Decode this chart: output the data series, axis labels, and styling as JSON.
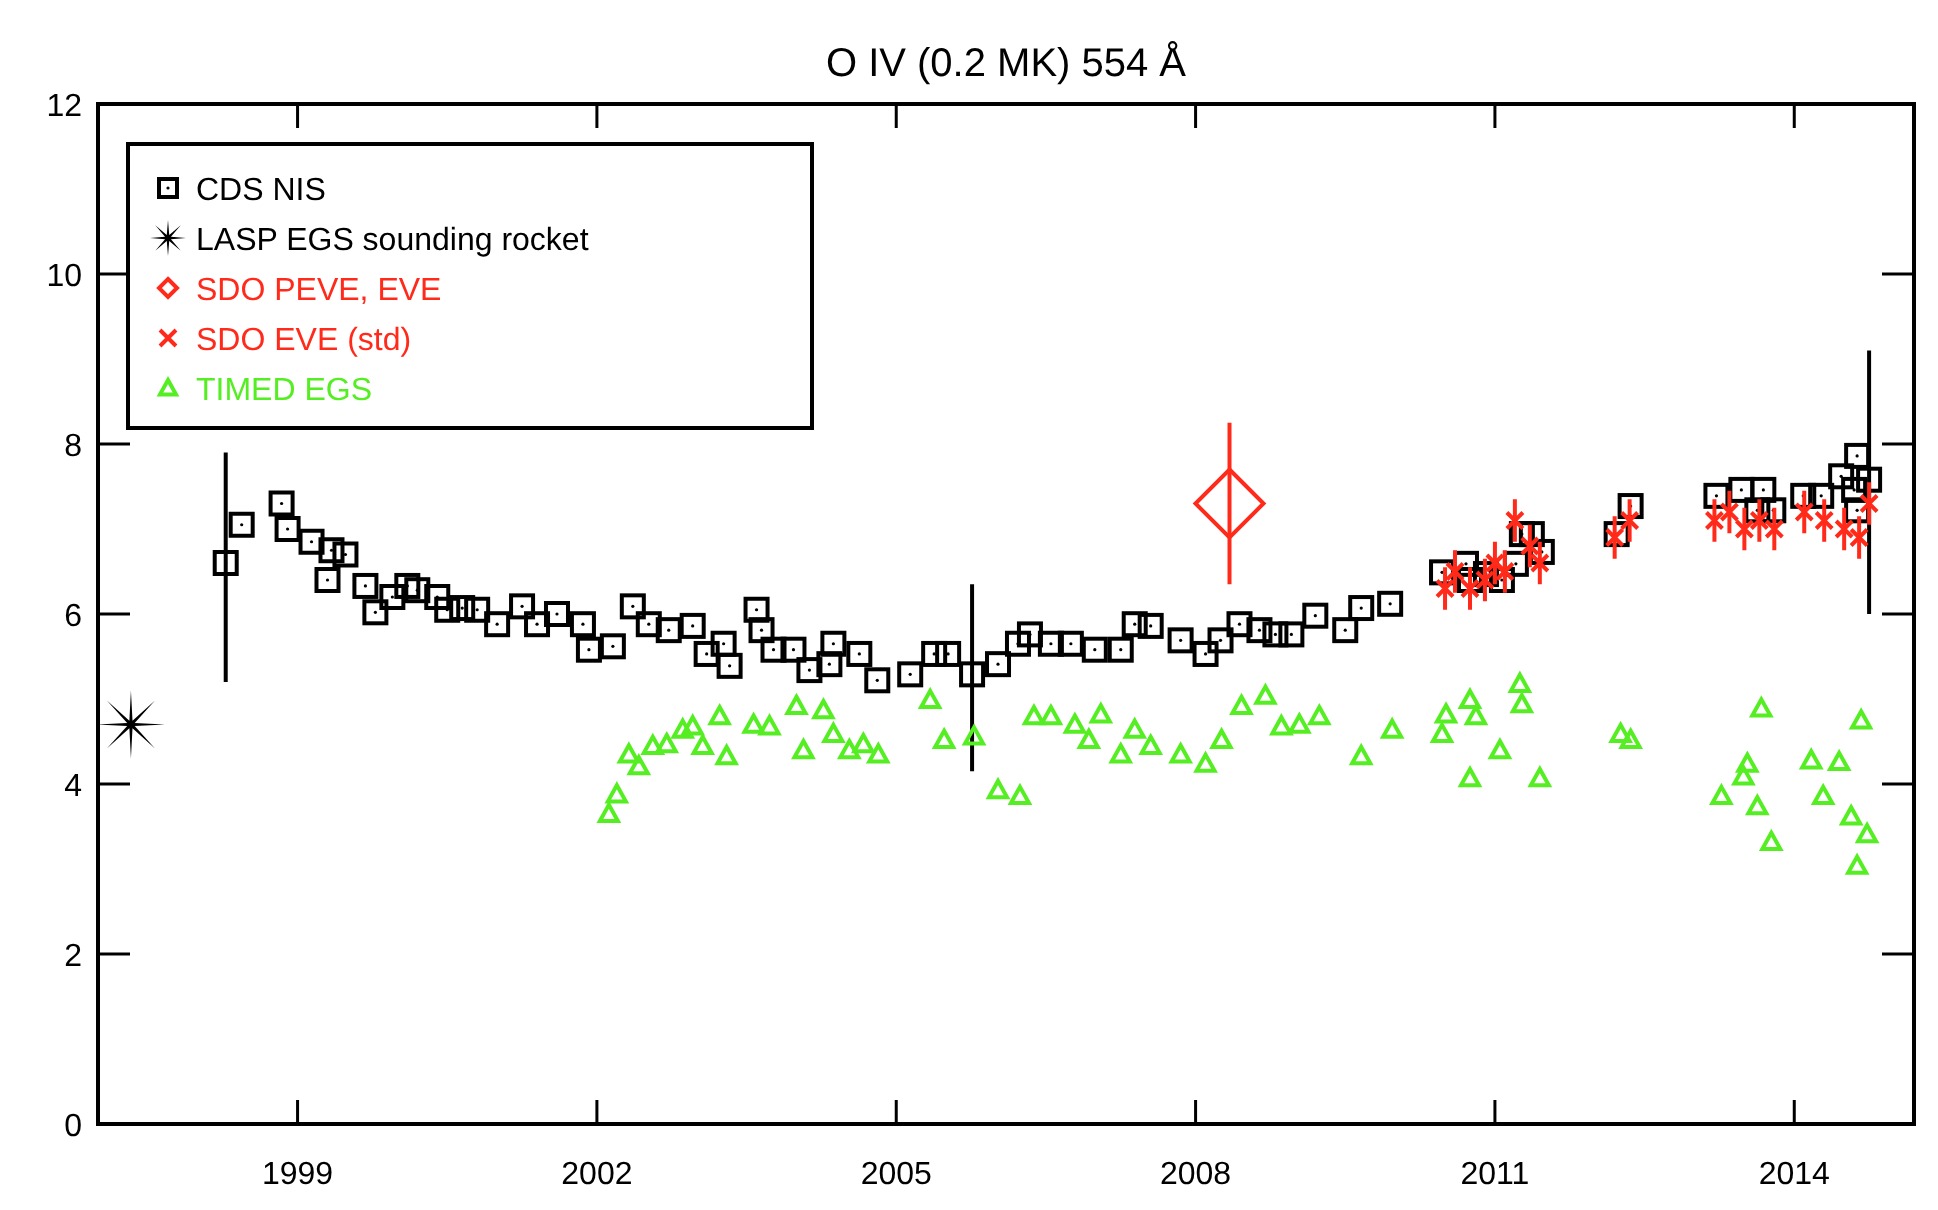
{
  "chart_data": {
    "type": "scatter",
    "title": "O IV (0.2 MK) 554 Å",
    "xlim": [
      1997,
      2015.2
    ],
    "ylim": [
      0,
      12
    ],
    "xticks": [
      1999,
      2002,
      2005,
      2008,
      2011,
      2014
    ],
    "yticks": [
      0,
      2,
      4,
      6,
      8,
      10,
      12
    ],
    "grid": false,
    "legend": "top left",
    "series": [
      {
        "name": "CDS NIS",
        "color": "#000000",
        "marker": "square",
        "x": [
          1998.28,
          1998.44,
          1998.84,
          1998.9,
          1999.14,
          1999.34,
          1999.48,
          1999.3,
          1999.68,
          1999.78,
          1999.95,
          2000.1,
          2000.2,
          2000.4,
          2000.5,
          2000.65,
          2000.8,
          2001.0,
          2001.25,
          2001.4,
          2001.6,
          2001.86,
          2001.92,
          2002.16,
          2002.36,
          2002.52,
          2002.72,
          2002.96,
          2003.1,
          2003.27,
          2003.33,
          2003.6,
          2003.65,
          2003.77,
          2003.97,
          2004.13,
          2004.37,
          2004.33,
          2004.63,
          2004.81,
          2005.14,
          2005.38,
          2005.52,
          2005.76,
          2006.02,
          2006.22,
          2006.34,
          2006.55,
          2006.75,
          2006.99,
          2007.25,
          2007.39,
          2007.55,
          2007.85,
          2008.1,
          2008.25,
          2008.44,
          2008.64,
          2008.8,
          2008.96,
          2009.2,
          2009.5,
          2009.66,
          2009.95,
          2010.47,
          2010.71,
          2010.75,
          2010.91,
          2011.07,
          2011.21,
          2011.27,
          2011.37,
          2011.47,
          2012.22,
          2012.36,
          2013.22,
          2013.47,
          2013.69,
          2013.63,
          2013.79,
          2014.09,
          2014.27,
          2014.47,
          2014.6,
          2014.63,
          2014.63,
          2014.75
        ],
        "values": [
          6.6,
          7.05,
          7.3,
          7.0,
          6.85,
          6.75,
          6.7,
          6.4,
          6.33,
          6.02,
          6.2,
          6.33,
          6.28,
          6.2,
          6.05,
          6.07,
          6.05,
          5.88,
          6.09,
          5.88,
          6.0,
          5.88,
          5.58,
          5.62,
          6.09,
          5.88,
          5.81,
          5.86,
          5.53,
          5.65,
          5.39,
          6.05,
          5.81,
          5.58,
          5.58,
          5.34,
          5.65,
          5.41,
          5.53,
          5.22,
          5.29,
          5.53,
          5.53,
          5.29,
          5.41,
          5.65,
          5.76,
          5.65,
          5.65,
          5.58,
          5.58,
          5.88,
          5.86,
          5.69,
          5.53,
          5.69,
          5.88,
          5.81,
          5.76,
          5.76,
          5.98,
          5.81,
          6.07,
          6.12,
          6.49,
          6.59,
          6.4,
          6.47,
          6.4,
          6.59,
          6.94,
          6.94,
          6.73,
          6.94,
          7.27,
          7.39,
          7.46,
          7.46,
          7.22,
          7.22,
          7.39,
          7.39,
          7.62,
          7.46,
          7.86,
          7.22,
          7.58
        ],
        "errors": [
          [
            5.2,
            7.9
          ],
          null,
          null,
          null,
          null,
          null,
          null,
          null,
          null,
          null,
          null,
          null,
          null,
          null,
          null,
          null,
          null,
          null,
          null,
          null,
          null,
          null,
          null,
          null,
          null,
          null,
          null,
          null,
          null,
          null,
          null,
          null,
          null,
          null,
          null,
          null,
          null,
          null,
          null,
          null,
          null,
          null,
          null,
          [
            4.15,
            6.35
          ],
          null,
          null,
          null,
          null,
          null,
          null,
          null,
          null,
          null,
          null,
          null,
          null,
          null,
          null,
          null,
          null,
          null,
          null,
          null,
          null,
          null,
          null,
          null,
          null,
          null,
          null,
          null,
          null,
          null,
          null,
          null,
          null,
          null,
          null,
          null,
          null,
          null,
          null,
          null,
          null,
          null,
          null,
          [
            6.0,
            9.1
          ]
        ]
      },
      {
        "name": "LASP EGS sounding rocket",
        "color": "#000000",
        "marker": "star",
        "x": [
          1997.33
        ],
        "values": [
          4.7
        ]
      },
      {
        "name": "SDO PEVE, EVE",
        "color": "#ff2a1a",
        "marker": "diamond",
        "x": [
          2008.34
        ],
        "values": [
          7.3
        ],
        "errors": [
          [
            6.35,
            8.25
          ]
        ]
      },
      {
        "name": "SDO EVE (std)",
        "color": "#ff2a1a",
        "marker": "cross",
        "x": [
          2010.5,
          2010.6,
          2010.75,
          2010.9,
          2011.0,
          2011.1,
          2011.2,
          2011.35,
          2011.45,
          2012.2,
          2012.35,
          2013.2,
          2013.35,
          2013.5,
          2013.65,
          2013.8,
          2014.1,
          2014.3,
          2014.5,
          2014.65,
          2014.75
        ],
        "values": [
          6.3,
          6.5,
          6.3,
          6.4,
          6.6,
          6.5,
          7.1,
          6.8,
          6.6,
          6.9,
          7.1,
          7.1,
          7.2,
          7.0,
          7.1,
          7.0,
          7.2,
          7.1,
          7.0,
          6.9,
          7.3
        ],
        "errors": [
          0.25,
          0.25,
          0.25,
          0.25,
          0.25,
          0.25,
          0.25,
          0.25,
          0.25,
          0.25,
          0.25,
          0.25,
          0.25,
          0.25,
          0.25,
          0.25,
          0.25,
          0.25,
          0.25,
          0.25,
          0.25
        ]
      },
      {
        "name": "TIMED EGS",
        "color": "#55ee22",
        "marker": "triangle",
        "x": [
          2002.12,
          2002.2,
          2002.32,
          2002.42,
          2002.56,
          2002.7,
          2002.86,
          2002.96,
          2003.06,
          2003.23,
          2003.3,
          2003.57,
          2003.73,
          2004.0,
          2004.07,
          2004.27,
          2004.37,
          2004.53,
          2004.67,
          2004.82,
          2005.34,
          2005.48,
          2005.78,
          2006.02,
          2006.24,
          2006.38,
          2006.55,
          2006.79,
          2006.93,
          2007.05,
          2007.25,
          2007.39,
          2007.55,
          2007.85,
          2008.1,
          2008.26,
          2008.46,
          2008.7,
          2008.86,
          2009.04,
          2009.24,
          2009.66,
          2009.97,
          2010.51,
          2010.47,
          2010.75,
          2010.81,
          2010.75,
          2011.05,
          2011.25,
          2011.27,
          2011.45,
          2012.26,
          2012.36,
          2013.27,
          2013.49,
          2013.53,
          2013.67,
          2013.63,
          2013.77,
          2014.17,
          2014.29,
          2014.45,
          2014.57,
          2014.73,
          2014.63,
          2014.67
        ],
        "values": [
          3.65,
          3.88,
          4.35,
          4.21,
          4.45,
          4.47,
          4.64,
          4.68,
          4.45,
          4.8,
          4.33,
          4.7,
          4.68,
          4.92,
          4.4,
          4.87,
          4.59,
          4.4,
          4.47,
          4.35,
          4.99,
          4.52,
          4.56,
          3.93,
          3.86,
          4.8,
          4.8,
          4.7,
          4.52,
          4.82,
          4.35,
          4.64,
          4.45,
          4.35,
          4.24,
          4.52,
          4.92,
          5.04,
          4.68,
          4.7,
          4.8,
          4.33,
          4.64,
          4.82,
          4.59,
          4.99,
          4.8,
          4.07,
          4.4,
          5.18,
          4.94,
          4.07,
          4.59,
          4.52,
          3.86,
          4.09,
          4.24,
          4.89,
          3.74,
          3.32,
          4.28,
          3.86,
          4.26,
          3.62,
          3.41,
          3.04,
          4.75
        ]
      }
    ]
  }
}
